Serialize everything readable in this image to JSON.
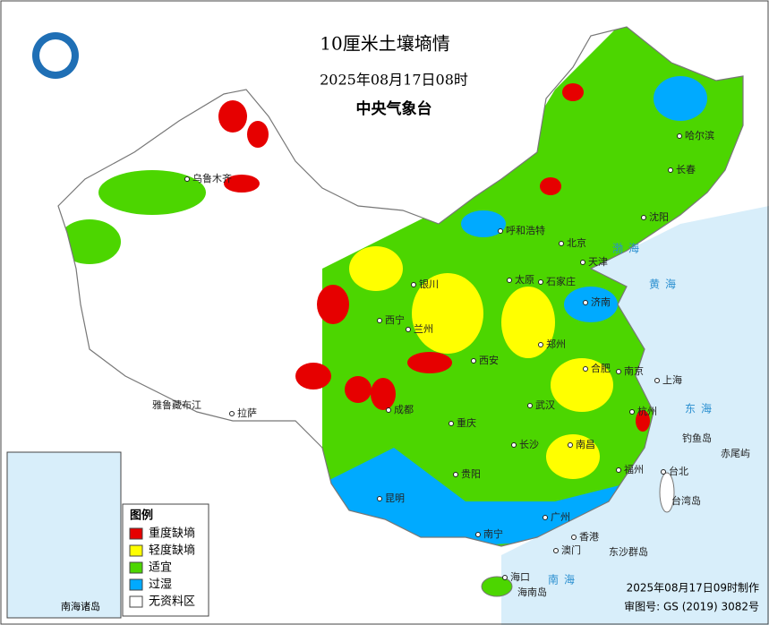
{
  "header": {
    "title": "10厘米土壤墒情",
    "datetime": "2025年08月17日08时",
    "agency": "中央气象台"
  },
  "legend": {
    "title": "图例",
    "items": [
      {
        "label": "重度缺墒",
        "color": "#e60000"
      },
      {
        "label": "轻度缺墒",
        "color": "#ffff00"
      },
      {
        "label": "适宜",
        "color": "#4cd600"
      },
      {
        "label": "过湿",
        "color": "#00aaff"
      },
      {
        "label": "无资料区",
        "color": "#ffffff"
      }
    ]
  },
  "cities": [
    "乌鲁木齐",
    "哈尔滨",
    "长春",
    "沈阳",
    "呼和浩特",
    "北京",
    "天津",
    "石家庄",
    "太原",
    "银川",
    "西宁",
    "兰州",
    "济南",
    "郑州",
    "西安",
    "合肥",
    "南京",
    "上海",
    "杭州",
    "武汉",
    "成都",
    "重庆",
    "长沙",
    "南昌",
    "贵阳",
    "昆明",
    "福州",
    "台北",
    "南宁",
    "广州",
    "香港",
    "澳门",
    "海口",
    "拉萨"
  ],
  "places": [
    "渤海",
    "黄海",
    "东海",
    "南海",
    "钓鱼岛",
    "赤尾屿",
    "台湾岛",
    "东沙群岛",
    "海南岛",
    "雅鲁藏布江"
  ],
  "inset": {
    "label": "南海诸岛"
  },
  "footer": {
    "made": "2025年08月17日09时制作",
    "review": "审图号: GS (2019) 3082号"
  }
}
